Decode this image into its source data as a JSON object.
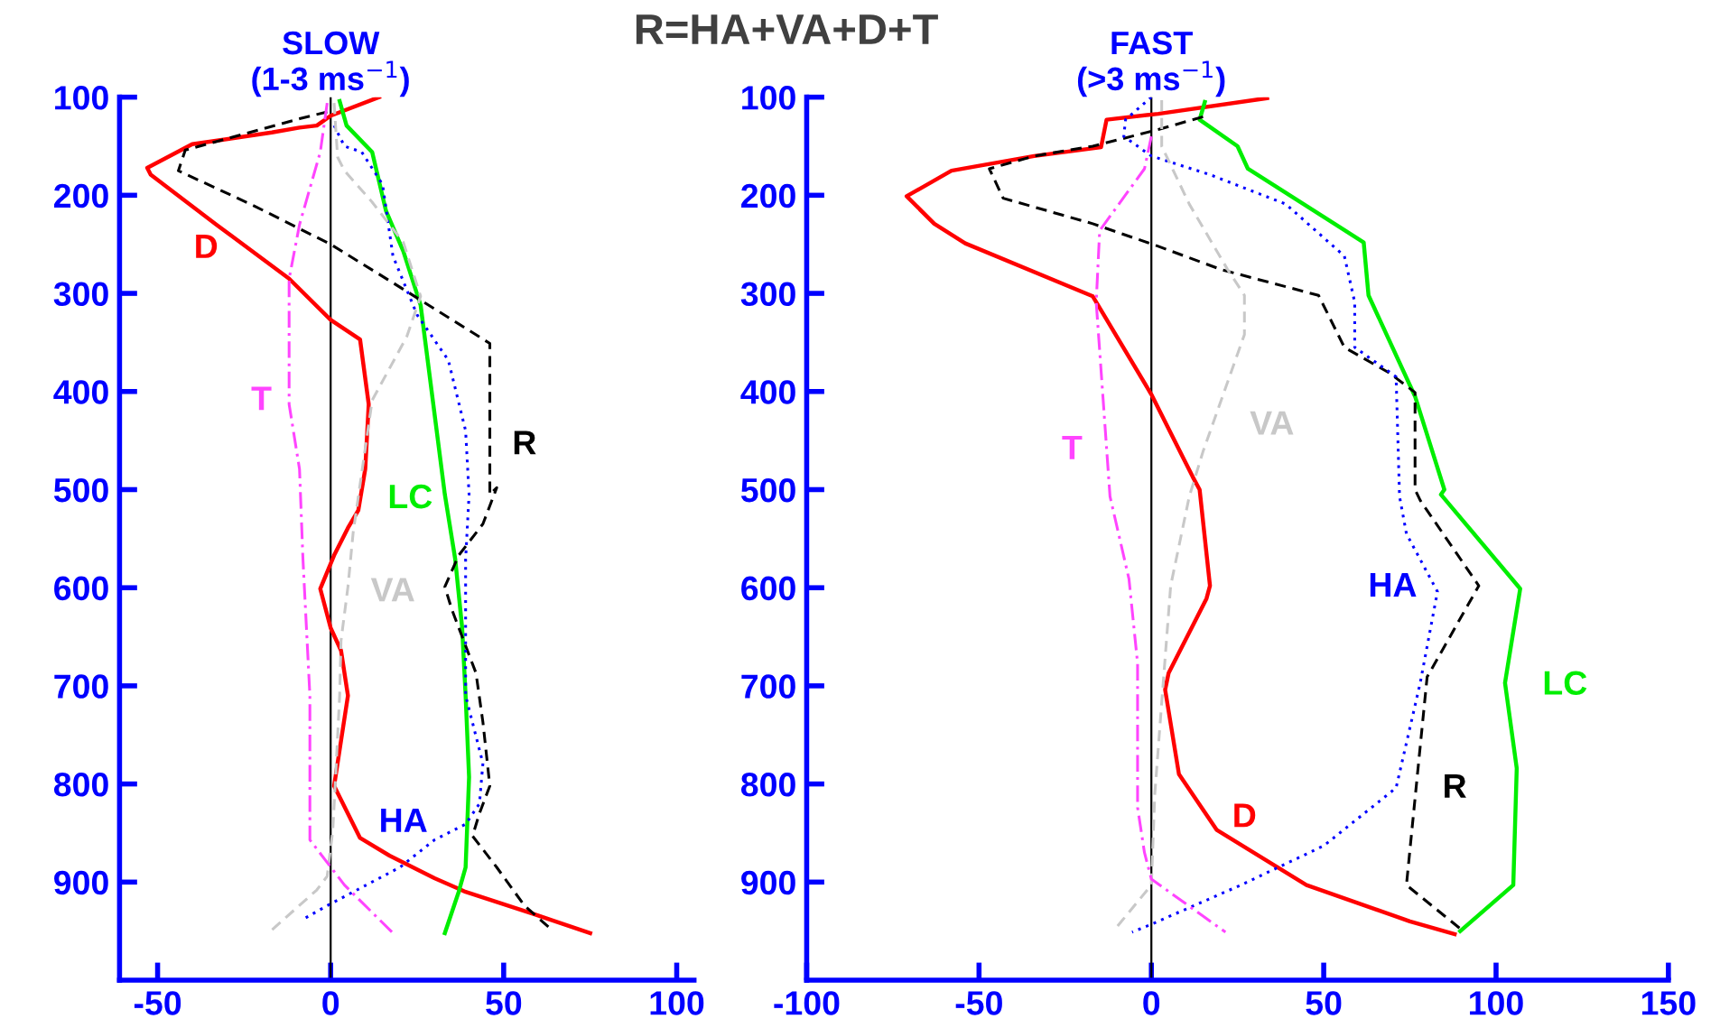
{
  "chart_data": [
    {
      "type": "line",
      "title": "SLOW\n(1-3 ms$^{−1}$)",
      "annotations": [
        "R=HA+VA+D+T"
      ],
      "xlim": [
        -61,
        105
      ],
      "xticks": [
        -50,
        0,
        50,
        100
      ],
      "ylim": [
        1000,
        100
      ],
      "yticks": [
        100,
        200,
        300,
        400,
        500,
        600,
        700,
        800,
        900
      ],
      "grid": false,
      "legend": false,
      "marker": "none",
      "ref_lines": [
        {
          "axis": "x",
          "value": 0,
          "color": "#000000",
          "line_style": "solid"
        }
      ],
      "series": [
        {
          "name": "R",
          "color": "#000000",
          "line_style": "dashed",
          "x": [
            -1,
            -9,
            -42,
            -44,
            -22,
            0,
            17,
            46,
            46,
            48,
            44,
            37,
            33,
            35,
            42,
            44,
            46,
            43,
            41,
            48,
            56,
            64
          ],
          "values": [
            115,
            122,
            154,
            175,
            211,
            250,
            287,
            351,
            505,
            498,
            535,
            567,
            599,
            622,
            687,
            737,
            802,
            830,
            853,
            885,
            924,
            949
          ]
        },
        {
          "name": "HA",
          "color": "#0000ff",
          "line_style": "dotted",
          "x": [
            1,
            4,
            9,
            15,
            18,
            25,
            34,
            39,
            40,
            39,
            39,
            44,
            43,
            39,
            30,
            20,
            -1,
            -8
          ],
          "values": [
            129,
            150,
            156,
            189,
            262,
            322,
            368,
            440,
            505,
            571,
            710,
            779,
            820,
            841,
            857,
            885,
            924,
            938
          ]
        },
        {
          "name": "VA",
          "color": "#c8c8c8",
          "line_style": "dashed",
          "x": [
            1,
            2,
            4,
            12,
            21,
            26,
            22,
            12,
            6.5,
            5,
            3,
            2.6,
            1.3,
            0.6,
            -1,
            -4,
            -18
          ],
          "values": [
            106,
            161,
            175,
            207,
            248,
            303,
            344,
            409,
            544,
            599,
            654,
            710,
            802,
            848,
            894,
            908,
            952
          ]
        },
        {
          "name": "D",
          "color": "#ff0000",
          "line_style": "solid",
          "x": [
            14,
            0,
            -4,
            -9,
            -17,
            -40,
            -53,
            -52,
            -33,
            -12,
            0,
            8.5,
            11,
            10,
            8,
            5,
            1,
            -3,
            0,
            3,
            5,
            3,
            1,
            8.5,
            17,
            30,
            39,
            59,
            75
          ],
          "values": [
            100,
            119,
            129,
            131,
            136,
            148,
            172,
            179,
            230,
            285,
            327,
            347,
            413,
            479,
            521,
            539,
            567,
            601,
            641,
            664,
            710,
            756,
            802,
            855,
            873,
            896,
            910,
            933,
            952
          ]
        },
        {
          "name": "T",
          "color": "#ff44ff",
          "line_style": "dashdot",
          "x": [
            -1,
            -3,
            -9,
            -12,
            -12,
            -9,
            -8,
            -6,
            -6,
            -6,
            -1,
            4,
            18
          ],
          "values": [
            106,
            156,
            230,
            285,
            413,
            479,
            571,
            710,
            839,
            857,
            880,
            903,
            952
          ]
        },
        {
          "name": "LC",
          "color": "#00ee00",
          "line_style": "solid",
          "x": [
            2.6,
            4.6,
            12,
            16,
            21,
            26,
            33,
            36,
            38,
            39,
            40,
            39,
            37,
            33
          ],
          "values": [
            104,
            129,
            156,
            216,
            257,
            312,
            505,
            571,
            641,
            710,
            793,
            885,
            910,
            952
          ]
        }
      ]
    },
    {
      "type": "line",
      "title": "FAST\n(>3 ms$^{−1}$)",
      "xlim": [
        -100,
        150
      ],
      "xticks": [
        -100,
        -50,
        0,
        50,
        100,
        150
      ],
      "ylim": [
        1000,
        100
      ],
      "yticks": [
        100,
        200,
        300,
        400,
        500,
        600,
        700,
        800,
        900
      ],
      "grid": false,
      "legend": false,
      "marker": "none",
      "ref_lines": [
        {
          "axis": "x",
          "value": 0,
          "color": "#000000",
          "line_style": "solid"
        }
      ],
      "series": [
        {
          "name": "R",
          "color": "#000000",
          "line_style": "dashed",
          "x": [
            15,
            2,
            -17,
            -34,
            -47,
            -43,
            -17,
            2,
            20.5,
            48.5,
            56,
            69,
            76.5,
            76.5,
            78,
            95,
            80,
            75.5,
            74,
            90.5
          ],
          "values": [
            120,
            133,
            150,
            160,
            173,
            203,
            229,
            252,
            276,
            302,
            355,
            381,
            401,
            500,
            511,
            598,
            691,
            850,
            903,
            950
          ]
        },
        {
          "name": "HA",
          "color": "#0000ff",
          "line_style": "dotted",
          "x": [
            0,
            -7.5,
            -8,
            0,
            17,
            39,
            56,
            59,
            59,
            71,
            72,
            74,
            83,
            78,
            71,
            50,
            26,
            0,
            -5.6
          ],
          "values": [
            100,
            123,
            140,
            160,
            179,
            209,
            262,
            309,
            355,
            385,
            507,
            545,
            604,
            697,
            804,
            863,
            903,
            943,
            951
          ]
        },
        {
          "name": "VA",
          "color": "#c8c8c8",
          "line_style": "dashed",
          "x": [
            3,
            3,
            11,
            22,
            27,
            27,
            15,
            11,
            5.6,
            3,
            1,
            0,
            -11
          ],
          "values": [
            103,
            150,
            209,
            275,
            302,
            342,
            461,
            507,
            598,
            717,
            810,
            903,
            950
          ]
        },
        {
          "name": "D",
          "color": "#ff0000",
          "line_style": "solid",
          "x": [
            33.6,
            2,
            -13,
            -14.6,
            -34,
            -58,
            -71,
            -63,
            -54,
            -17,
            0,
            12,
            14,
            17,
            16,
            5,
            4,
            8,
            19,
            45,
            75,
            88
          ],
          "values": [
            101,
            117,
            123,
            151,
            160,
            175,
            201,
            229,
            249,
            303,
            403,
            487,
            500,
            598,
            611,
            687,
            704,
            790,
            847,
            903,
            940,
            953
          ]
        },
        {
          "name": "T",
          "color": "#ff44ff",
          "line_style": "dashdot",
          "x": [
            0,
            -2,
            -15,
            -16,
            -12,
            -6.5,
            -4,
            -4,
            -2,
            0,
            21.5
          ],
          "values": [
            140,
            173,
            236,
            309,
            507,
            591,
            677,
            824,
            870,
            897,
            951
          ]
        },
        {
          "name": "LC",
          "color": "#00ee00",
          "line_style": "solid",
          "x": [
            15.5,
            14,
            25,
            28,
            61.6,
            63,
            76.5,
            85,
            84,
            107,
            102.6,
            106,
            105,
            89.6
          ],
          "values": [
            105,
            123,
            150,
            173,
            248,
            302,
            405,
            500,
            505,
            601,
            697,
            784,
            903,
            950
          ]
        }
      ]
    }
  ]
}
